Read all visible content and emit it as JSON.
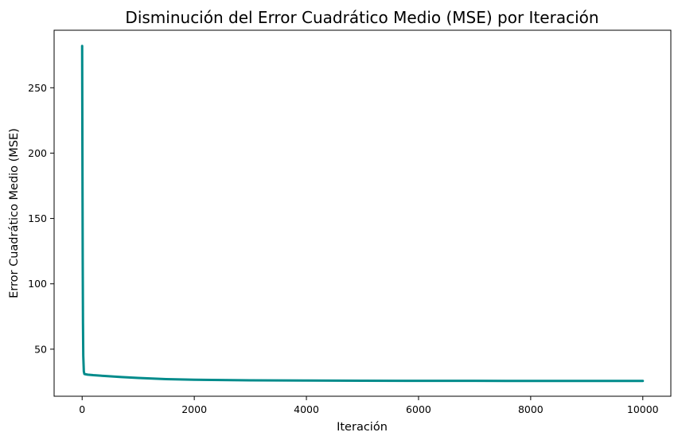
{
  "chart_data": {
    "type": "line",
    "title": "Disminución del Error Cuadrático Medio (MSE) por Iteración",
    "xlabel": "Iteración",
    "ylabel": "Error Cuadrático Medio (MSE)",
    "xlim": [
      -500,
      10500
    ],
    "ylim": [
      14,
      294
    ],
    "xticks": [
      0,
      2000,
      4000,
      6000,
      8000,
      10000
    ],
    "yticks": [
      50,
      100,
      150,
      200,
      250
    ],
    "grid": false,
    "line_color": "#008b8b",
    "series": [
      {
        "x": [
          0,
          5,
          10,
          15,
          20,
          30,
          40,
          60,
          100,
          200,
          400,
          700,
          1000,
          1500,
          2000,
          3000,
          4000,
          5000,
          6000,
          7000,
          8000,
          9000,
          10000
        ],
        "y": [
          282,
          200,
          120,
          70,
          45,
          33,
          31,
          30.8,
          30.5,
          30.1,
          29.5,
          28.7,
          28.0,
          27.1,
          26.6,
          26.2,
          26.0,
          25.9,
          25.8,
          25.8,
          25.7,
          25.7,
          25.7
        ]
      }
    ]
  }
}
